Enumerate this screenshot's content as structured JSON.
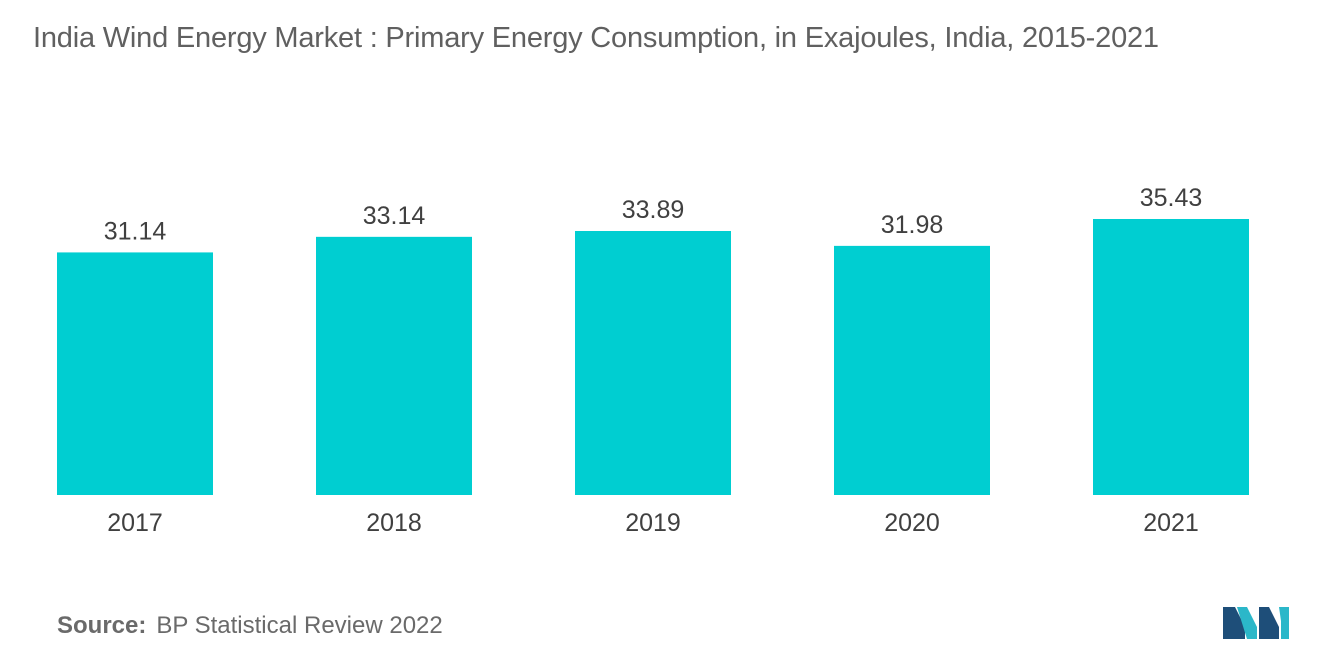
{
  "title": "India Wind Energy Market : Primary Energy Consumption, in Exajoules, India, 2015-2021",
  "source": {
    "label": "Source:",
    "text": "BP Statistical Review 2022"
  },
  "logo_icon": "mordor-intelligence-logo-icon",
  "colors": {
    "bar": "#00CED1",
    "logo_dark": "#1E4E79",
    "logo_light": "#2BB7C9"
  },
  "chart_data": {
    "type": "bar",
    "title": "India Wind Energy Market : Primary Energy Consumption, in Exajoules, India, 2015-2021",
    "categories": [
      "2017",
      "2018",
      "2019",
      "2020",
      "2021"
    ],
    "values": [
      31.14,
      33.14,
      33.89,
      31.98,
      35.43
    ],
    "value_labels": [
      "31.14",
      "33.14",
      "33.89",
      "31.98",
      "35.43"
    ],
    "xlabel": "",
    "ylabel": "",
    "ylim": [
      0,
      35.43
    ],
    "grid": false,
    "legend": "none"
  }
}
